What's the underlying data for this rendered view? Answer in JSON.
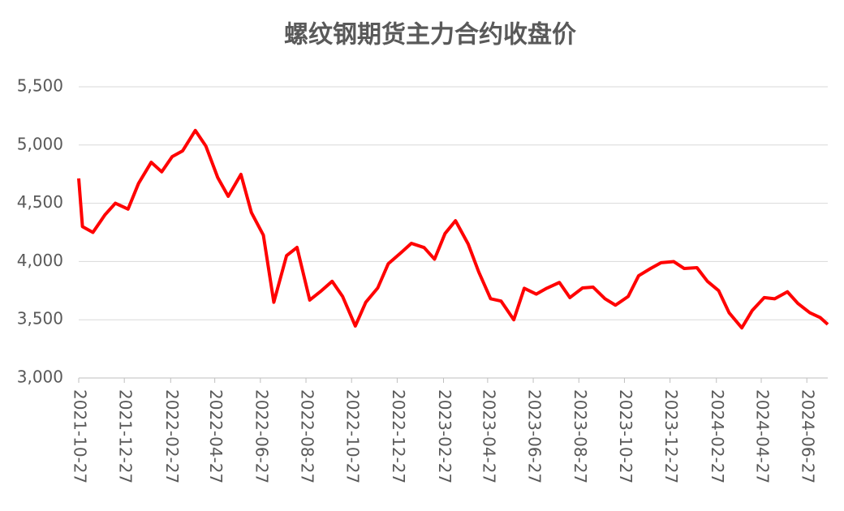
{
  "chart_data": {
    "type": "line",
    "title": "螺纹钢期货主力合约收盘价",
    "x": [
      "2021-10-27",
      "2021-11-01",
      "2021-11-15",
      "2021-12-01",
      "2021-12-15",
      "2022-01-01",
      "2022-01-15",
      "2022-02-01",
      "2022-02-15",
      "2022-03-01",
      "2022-03-15",
      "2022-04-01",
      "2022-04-15",
      "2022-05-01",
      "2022-05-15",
      "2022-06-01",
      "2022-06-15",
      "2022-07-01",
      "2022-07-15",
      "2022-08-01",
      "2022-08-15",
      "2022-09-01",
      "2022-09-15",
      "2022-10-01",
      "2022-10-15",
      "2022-11-01",
      "2022-11-15",
      "2022-12-01",
      "2022-12-15",
      "2023-01-01",
      "2023-01-15",
      "2023-02-01",
      "2023-02-15",
      "2023-03-01",
      "2023-03-15",
      "2023-04-01",
      "2023-04-15",
      "2023-05-01",
      "2023-05-15",
      "2023-06-01",
      "2023-06-15",
      "2023-07-01",
      "2023-07-15",
      "2023-08-01",
      "2023-08-15",
      "2023-09-01",
      "2023-09-15",
      "2023-10-01",
      "2023-10-15",
      "2023-11-01",
      "2023-11-15",
      "2023-12-01",
      "2023-12-15",
      "2024-01-01",
      "2024-01-15",
      "2024-02-01",
      "2024-02-15",
      "2024-03-01",
      "2024-03-15",
      "2024-04-01",
      "2024-04-15",
      "2024-05-01",
      "2024-05-15",
      "2024-06-01",
      "2024-06-15",
      "2024-07-01",
      "2024-07-15",
      "2024-07-25"
    ],
    "series": [
      {
        "name": "收盘价",
        "color": "#ff0000",
        "values": [
          4713,
          4300,
          4250,
          4400,
          4500,
          4450,
          4670,
          4852,
          4770,
          4900,
          4950,
          5125,
          4992,
          4720,
          4560,
          4748,
          4420,
          4226,
          3650,
          4050,
          4121,
          3669,
          3740,
          3830,
          3700,
          3446,
          3650,
          3773,
          3980,
          4075,
          4156,
          4120,
          4020,
          4240,
          4350,
          4150,
          3912,
          3680,
          3660,
          3500,
          3770,
          3720,
          3770,
          3820,
          3690,
          3773,
          3780,
          3680,
          3625,
          3700,
          3878,
          3940,
          3990,
          3999,
          3940,
          3947,
          3830,
          3750,
          3560,
          3430,
          3580,
          3690,
          3680,
          3740,
          3640,
          3560,
          3518,
          3460
        ]
      }
    ],
    "xlim": [
      "2021-10-27",
      "2024-07-25"
    ],
    "xticks": [
      "2021-10-27",
      "2021-12-27",
      "2022-02-27",
      "2022-04-27",
      "2022-06-27",
      "2022-08-27",
      "2022-10-27",
      "2022-12-27",
      "2023-02-27",
      "2023-04-27",
      "2023-06-27",
      "2023-08-27",
      "2023-10-27",
      "2023-12-27",
      "2024-02-27",
      "2024-04-27",
      "2024-06-27"
    ],
    "ylim": [
      3000,
      5500
    ],
    "yticks": [
      {
        "value": 3000,
        "label": "3,000"
      },
      {
        "value": 3500,
        "label": "3,500"
      },
      {
        "value": 4000,
        "label": "4,000"
      },
      {
        "value": 4500,
        "label": "4,500"
      },
      {
        "value": 5000,
        "label": "5,000"
      },
      {
        "value": 5500,
        "label": "5,500"
      }
    ],
    "grid": true
  }
}
